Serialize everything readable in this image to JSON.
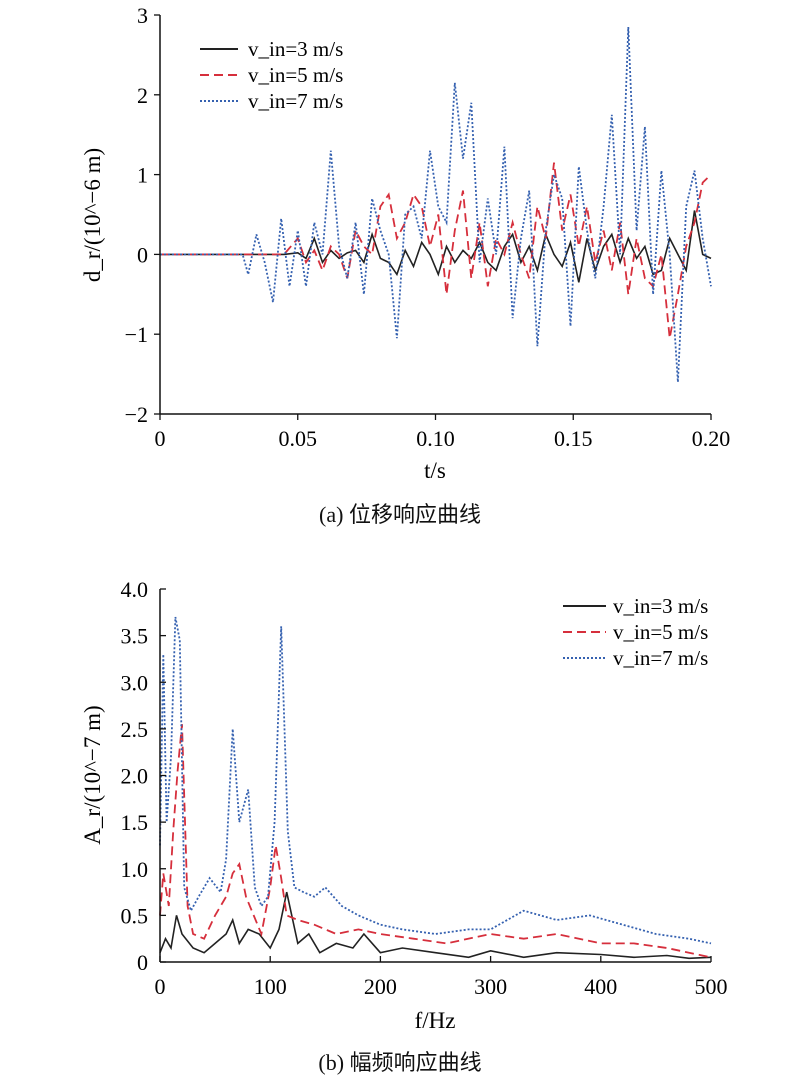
{
  "captions": {
    "a": "(a) 位移响应曲线",
    "b": "(b) 幅频响应曲线"
  },
  "chart_data": [
    {
      "type": "line",
      "xlabel": "t/s",
      "ylabel": "d_r/(10^−6 m)",
      "xlim": [
        0,
        0.2
      ],
      "ylim": [
        -2,
        3
      ],
      "xticks": [
        "0",
        "0.05",
        "0.10",
        "0.15",
        "0.20"
      ],
      "yticks": [
        "−2",
        "−1",
        "0",
        "1",
        "2",
        "3"
      ],
      "legend_position": "top-left",
      "grid": false,
      "series": [
        {
          "name": "v_in=3 m/s",
          "color": "#222222",
          "dash": "solid",
          "x": [
            0,
            0.045,
            0.05,
            0.053,
            0.056,
            0.059,
            0.062,
            0.065,
            0.068,
            0.071,
            0.074,
            0.077,
            0.08,
            0.083,
            0.086,
            0.089,
            0.092,
            0.095,
            0.098,
            0.101,
            0.104,
            0.107,
            0.11,
            0.113,
            0.116,
            0.119,
            0.122,
            0.125,
            0.128,
            0.131,
            0.134,
            0.137,
            0.14,
            0.143,
            0.146,
            0.149,
            0.152,
            0.155,
            0.158,
            0.161,
            0.164,
            0.167,
            0.17,
            0.173,
            0.176,
            0.179,
            0.182,
            0.185,
            0.188,
            0.191,
            0.194,
            0.197,
            0.2
          ],
          "y": [
            0,
            0,
            0.02,
            -0.05,
            0.2,
            -0.1,
            0.05,
            -0.05,
            0.02,
            0.05,
            -0.1,
            0.25,
            -0.05,
            -0.1,
            -0.25,
            0.05,
            -0.15,
            0.15,
            0.0,
            -0.25,
            0.1,
            -0.1,
            0.05,
            -0.05,
            0.15,
            -0.1,
            -0.2,
            0.1,
            0.25,
            -0.1,
            0.1,
            -0.2,
            0.25,
            0.0,
            -0.15,
            0.15,
            -0.35,
            0.2,
            -0.2,
            0.1,
            0.25,
            -0.1,
            0.2,
            -0.05,
            0.1,
            -0.25,
            -0.2,
            0.2,
            0.0,
            -0.2,
            0.55,
            0.0,
            -0.05
          ]
        },
        {
          "name": "v_in=5 m/s",
          "color": "#d62f3c",
          "dash": "dashed",
          "x": [
            0,
            0.045,
            0.05,
            0.053,
            0.056,
            0.059,
            0.062,
            0.065,
            0.068,
            0.071,
            0.074,
            0.077,
            0.08,
            0.083,
            0.086,
            0.089,
            0.092,
            0.095,
            0.098,
            0.101,
            0.104,
            0.107,
            0.11,
            0.113,
            0.116,
            0.119,
            0.122,
            0.125,
            0.128,
            0.131,
            0.134,
            0.137,
            0.14,
            0.143,
            0.146,
            0.149,
            0.152,
            0.155,
            0.158,
            0.161,
            0.164,
            0.167,
            0.17,
            0.173,
            0.176,
            0.179,
            0.182,
            0.185,
            0.188,
            0.191,
            0.194,
            0.197,
            0.2
          ],
          "y": [
            0,
            0,
            0.2,
            -0.1,
            0.05,
            -0.2,
            0.1,
            0.0,
            -0.3,
            0.3,
            0.1,
            0.0,
            0.6,
            0.75,
            0.2,
            0.4,
            0.75,
            0.6,
            0.1,
            0.5,
            -0.5,
            0.3,
            0.8,
            -0.3,
            0.4,
            -0.4,
            0.2,
            0.0,
            0.4,
            0.0,
            -0.3,
            0.6,
            0.2,
            1.15,
            0.3,
            0.75,
            0.1,
            0.6,
            -0.1,
            0.3,
            -0.2,
            0.4,
            -0.5,
            0.2,
            -0.3,
            -0.4,
            0.0,
            -1.05,
            -0.5,
            0.1,
            0.4,
            0.9,
            1.0
          ]
        },
        {
          "name": "v_in=7 m/s",
          "color": "#3561b0",
          "dash": "dotted",
          "x": [
            0,
            0.03,
            0.032,
            0.035,
            0.038,
            0.041,
            0.044,
            0.047,
            0.05,
            0.053,
            0.056,
            0.059,
            0.062,
            0.065,
            0.068,
            0.071,
            0.074,
            0.077,
            0.08,
            0.083,
            0.086,
            0.089,
            0.092,
            0.095,
            0.098,
            0.101,
            0.104,
            0.107,
            0.11,
            0.113,
            0.116,
            0.119,
            0.122,
            0.125,
            0.128,
            0.131,
            0.134,
            0.137,
            0.14,
            0.143,
            0.146,
            0.149,
            0.152,
            0.155,
            0.158,
            0.161,
            0.164,
            0.167,
            0.17,
            0.173,
            0.176,
            0.179,
            0.182,
            0.185,
            0.188,
            0.191,
            0.194,
            0.197,
            0.2
          ],
          "y": [
            0,
            0,
            -0.25,
            0.25,
            -0.1,
            -0.6,
            0.45,
            -0.4,
            0.3,
            -0.4,
            0.4,
            0.0,
            1.3,
            0.1,
            -0.3,
            0.4,
            -0.5,
            0.7,
            0.3,
            0.0,
            -1.05,
            0.5,
            0.6,
            0.2,
            1.3,
            0.6,
            0.4,
            2.15,
            1.2,
            1.9,
            -0.1,
            0.7,
            0.0,
            1.35,
            -0.8,
            0.2,
            0.8,
            -1.15,
            0.3,
            1.0,
            0.7,
            -0.9,
            1.1,
            0.3,
            -0.3,
            0.6,
            1.75,
            0.0,
            2.85,
            0.3,
            1.6,
            -0.5,
            1.05,
            0.0,
            -1.6,
            0.6,
            1.05,
            0.2,
            -0.4
          ]
        }
      ]
    },
    {
      "type": "line",
      "xlabel": "f/Hz",
      "ylabel": "A_r/(10^−7 m)",
      "xlim": [
        0,
        500
      ],
      "ylim": [
        0,
        4.0
      ],
      "xticks": [
        "0",
        "100",
        "200",
        "300",
        "400",
        "500"
      ],
      "yticks": [
        "0",
        "0.5",
        "1.0",
        "1.5",
        "2.0",
        "2.5",
        "3.0",
        "3.5",
        "4.0"
      ],
      "legend_position": "top-right",
      "grid": false,
      "series": [
        {
          "name": "v_in=3 m/s",
          "color": "#222222",
          "dash": "solid",
          "x": [
            0,
            5,
            10,
            15,
            20,
            30,
            40,
            50,
            60,
            66,
            72,
            80,
            90,
            100,
            108,
            115,
            125,
            135,
            145,
            160,
            175,
            185,
            200,
            220,
            250,
            280,
            300,
            330,
            360,
            400,
            430,
            460,
            480,
            500
          ],
          "y": [
            0.1,
            0.25,
            0.15,
            0.5,
            0.3,
            0.15,
            0.1,
            0.2,
            0.3,
            0.45,
            0.2,
            0.35,
            0.3,
            0.15,
            0.35,
            0.75,
            0.2,
            0.3,
            0.1,
            0.2,
            0.15,
            0.3,
            0.1,
            0.15,
            0.1,
            0.05,
            0.12,
            0.05,
            0.1,
            0.08,
            0.05,
            0.07,
            0.04,
            0.05
          ]
        },
        {
          "name": "v_in=5 m/s",
          "color": "#d62f3c",
          "dash": "dashed",
          "x": [
            0,
            3,
            8,
            12,
            16,
            20,
            25,
            30,
            40,
            50,
            60,
            66,
            72,
            78,
            85,
            92,
            100,
            105,
            110,
            115,
            125,
            140,
            160,
            180,
            200,
            230,
            260,
            300,
            330,
            360,
            400,
            430,
            460,
            480,
            500
          ],
          "y": [
            0.5,
            0.95,
            0.6,
            1.4,
            2.05,
            2.55,
            0.6,
            0.3,
            0.25,
            0.5,
            0.7,
            0.95,
            1.05,
            0.7,
            0.5,
            0.3,
            0.8,
            1.25,
            0.9,
            0.5,
            0.45,
            0.4,
            0.3,
            0.35,
            0.3,
            0.25,
            0.2,
            0.3,
            0.25,
            0.3,
            0.2,
            0.2,
            0.15,
            0.1,
            0.05
          ]
        },
        {
          "name": "v_in=7 m/s",
          "color": "#3561b0",
          "dash": "dotted",
          "x": [
            0,
            3,
            6,
            10,
            14,
            18,
            22,
            28,
            35,
            45,
            55,
            60,
            66,
            72,
            80,
            86,
            92,
            98,
            104,
            110,
            116,
            122,
            130,
            140,
            150,
            165,
            180,
            200,
            220,
            250,
            280,
            300,
            330,
            360,
            390,
            420,
            450,
            480,
            500
          ],
          "y": [
            1.25,
            3.3,
            1.5,
            2.2,
            3.7,
            3.45,
            0.8,
            0.55,
            0.7,
            0.9,
            0.75,
            1.1,
            2.5,
            1.5,
            1.85,
            0.8,
            0.6,
            0.7,
            1.5,
            3.6,
            1.4,
            0.8,
            0.75,
            0.7,
            0.8,
            0.6,
            0.5,
            0.4,
            0.35,
            0.3,
            0.35,
            0.35,
            0.55,
            0.45,
            0.5,
            0.4,
            0.3,
            0.25,
            0.2
          ]
        }
      ]
    }
  ]
}
